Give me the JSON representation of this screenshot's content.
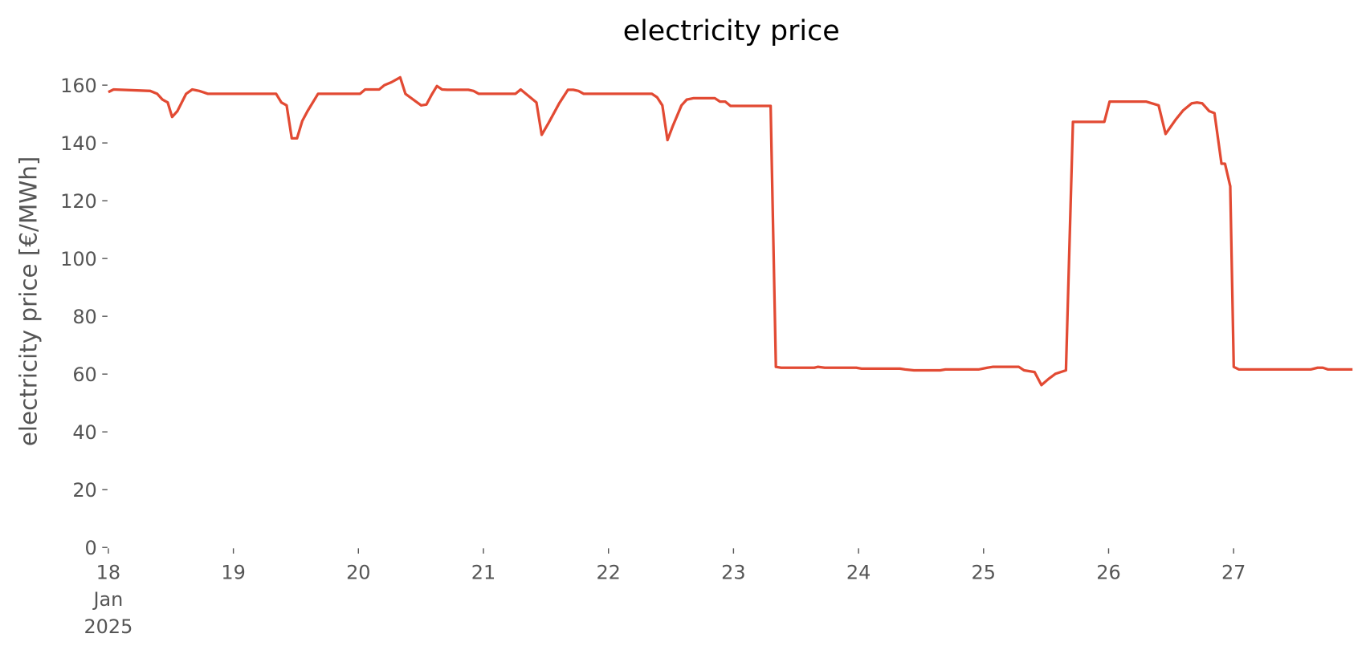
{
  "chart_data": {
    "type": "line",
    "title": "electricity price",
    "ylabel": "electricity price [€/MWh]",
    "series": [
      {
        "name": "electricity price",
        "color": "#E24A33",
        "x": [
          18.0,
          18.042,
          18.335,
          18.391,
          18.433,
          18.475,
          18.51,
          18.552,
          18.622,
          18.671,
          18.727,
          18.797,
          19.342,
          19.384,
          19.426,
          19.467,
          19.509,
          19.551,
          19.593,
          19.677,
          20.013,
          20.054,
          20.166,
          20.208,
          20.264,
          20.334,
          20.376,
          20.502,
          20.544,
          20.586,
          20.628,
          20.669,
          20.711,
          20.879,
          20.921,
          20.963,
          21.256,
          21.298,
          21.424,
          21.466,
          21.522,
          21.606,
          21.676,
          21.718,
          21.76,
          21.802,
          22.347,
          22.389,
          22.431,
          22.472,
          22.514,
          22.584,
          22.626,
          22.682,
          22.85,
          22.892,
          22.934,
          22.976,
          23.297,
          23.339,
          23.381,
          23.646,
          23.674,
          23.73,
          23.982,
          24.024,
          24.331,
          24.373,
          24.443,
          24.653,
          24.695,
          24.96,
          25.03,
          25.072,
          25.282,
          25.324,
          25.408,
          25.463,
          25.519,
          25.575,
          25.659,
          25.715,
          25.966,
          26.008,
          26.302,
          26.4,
          26.456,
          26.539,
          26.595,
          26.665,
          26.707,
          26.749,
          26.805,
          26.847,
          26.903,
          26.931,
          26.973,
          27.001,
          27.043,
          27.616,
          27.672,
          27.714,
          27.756,
          27.951
        ],
        "values": [
          157.6,
          158.5,
          158,
          157,
          155,
          154,
          149,
          151,
          157,
          158.5,
          158,
          157,
          157,
          154,
          153,
          141.6,
          141.6,
          147.6,
          151,
          157,
          157,
          158.5,
          158.5,
          160,
          161,
          162.7,
          157,
          153,
          153.3,
          156.7,
          159.7,
          158.5,
          158.4,
          158.4,
          158,
          157,
          157,
          158.5,
          154,
          142.8,
          147,
          153.7,
          158.4,
          158.4,
          158,
          157,
          157,
          155.8,
          153,
          141,
          145.8,
          153,
          155,
          155.5,
          155.5,
          154.3,
          154.3,
          152.8,
          152.8,
          62.5,
          62.2,
          62.2,
          62.5,
          62.2,
          62.2,
          61.9,
          61.9,
          61.6,
          61.3,
          61.3,
          61.6,
          61.6,
          62.2,
          62.5,
          62.5,
          61.3,
          60.7,
          56.2,
          58.3,
          60.1,
          61.3,
          147.3,
          147.3,
          154.3,
          154.3,
          153,
          143.1,
          148.2,
          151.2,
          153.7,
          154,
          153.7,
          151,
          150.3,
          132.8,
          132.8,
          125,
          62.5,
          61.6,
          61.6,
          62.2,
          62.2,
          61.6,
          61.6
        ]
      }
    ],
    "xlim": [
      18,
      27.958
    ],
    "xticks": [
      {
        "value": 18,
        "label": "18\nJan\n2025"
      },
      19,
      20,
      21,
      22,
      23,
      24,
      25,
      26,
      27
    ],
    "ylim": [
      0,
      160.3
    ],
    "yticks": [
      0,
      20,
      40,
      60,
      80,
      100,
      120,
      140,
      160
    ],
    "grid": false
  }
}
